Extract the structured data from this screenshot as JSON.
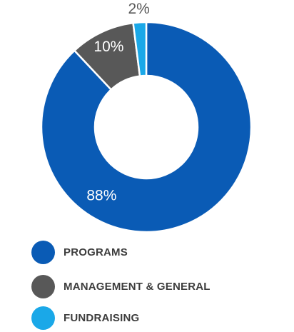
{
  "chart_data": {
    "type": "pie",
    "variant": "donut",
    "title": "",
    "categories": [
      "PROGRAMS",
      "MANAGEMENT & GENERAL",
      "FUNDRAISING"
    ],
    "values": [
      88,
      10,
      2
    ],
    "value_labels": [
      "88%",
      "10%",
      "2%"
    ],
    "colors": [
      "#0a5bb5",
      "#585858",
      "#1aa8e8"
    ],
    "legend": {
      "position": "bottom-left",
      "entries": [
        "PROGRAMS",
        "MANAGEMENT & GENERAL",
        "FUNDRAISING"
      ]
    }
  }
}
